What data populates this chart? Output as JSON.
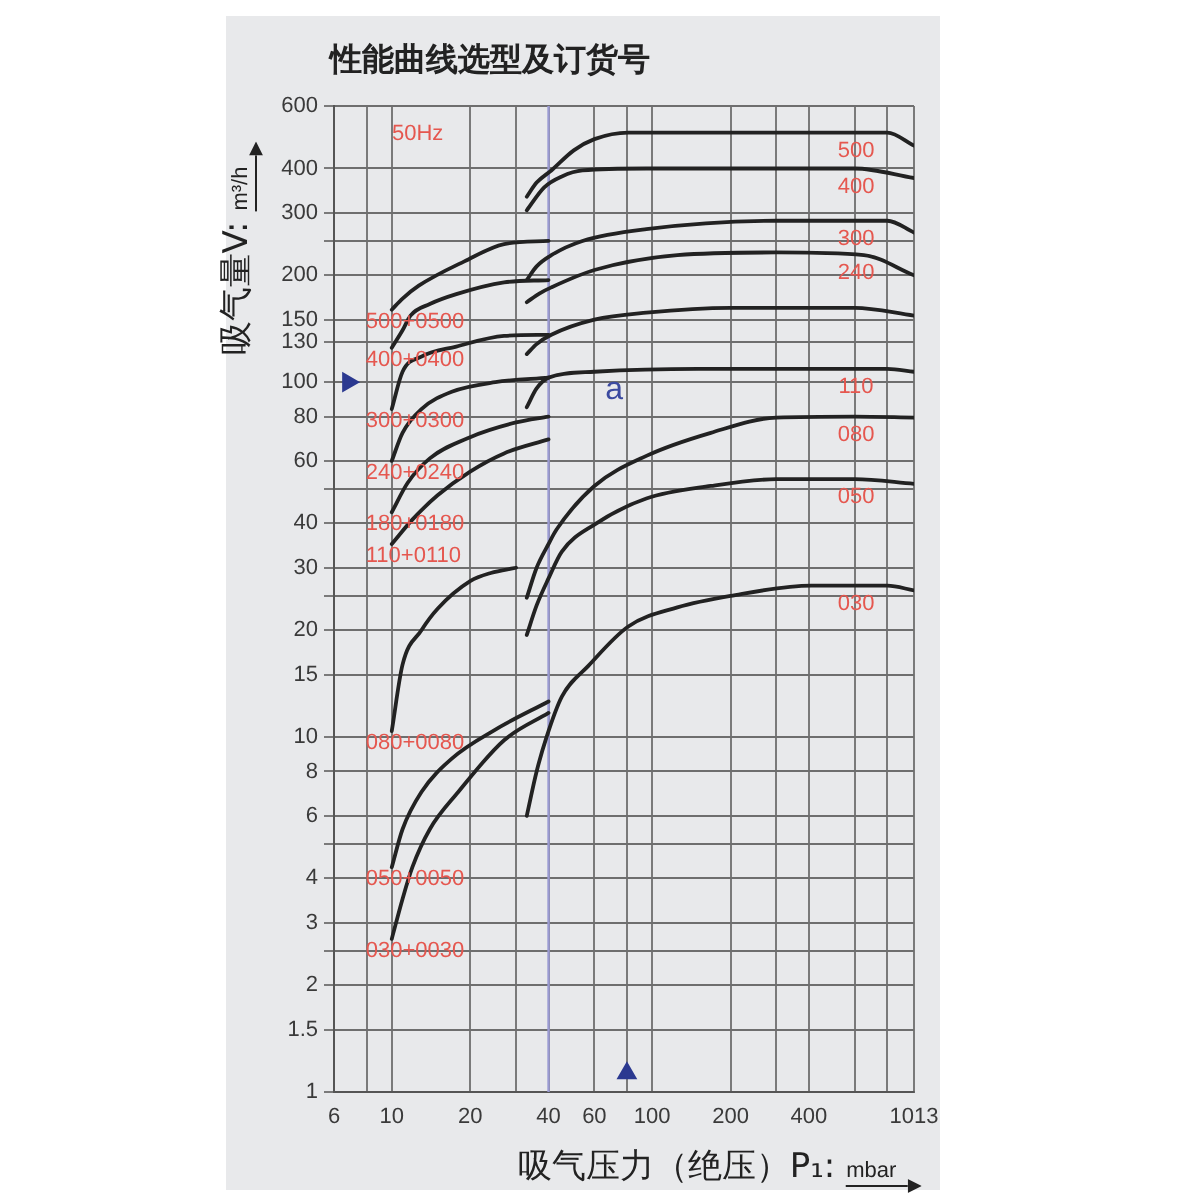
{
  "chart_data": {
    "type": "line",
    "title": "性能曲线选型及订货号",
    "xlabel": "吸气压力（绝压）P₁: mbar",
    "ylabel": "吸气量V: m³/h",
    "log": "xy",
    "grid": true,
    "legend": false,
    "marker": "none",
    "line_style": "solid",
    "xlim": [
      6,
      1013
    ],
    "ylim": [
      1,
      600
    ],
    "xticks": [
      6,
      {
        "value": 8,
        "label": null
      },
      10,
      20,
      {
        "value": 30,
        "label": null
      },
      40,
      60,
      {
        "value": 80,
        "label": null
      },
      100,
      200,
      {
        "value": 300,
        "label": null
      },
      400,
      {
        "value": 600,
        "label": null
      },
      {
        "value": 800,
        "label": null
      },
      1013
    ],
    "yticks": [
      1,
      1.5,
      2,
      {
        "value": 2.5,
        "label": null
      },
      3,
      4,
      {
        "value": 5,
        "label": null
      },
      6,
      8,
      10,
      15,
      20,
      {
        "value": 25,
        "label": null
      },
      30,
      40,
      {
        "value": 50,
        "label": null
      },
      60,
      80,
      100,
      130,
      150,
      200,
      {
        "value": 250,
        "label": null
      },
      300,
      400,
      600
    ],
    "annotations": [
      "50Hz",
      "a"
    ],
    "ref_lines": [
      {
        "axis": "x",
        "value": 40,
        "color": "#9a9ad2"
      }
    ],
    "series": [
      {
        "name": "500+0500",
        "color": "#222222",
        "x": [
          10,
          11,
          12.7,
          19,
          27,
          40
        ],
        "values": [
          160,
          172,
          187,
          219,
          245,
          250
        ]
      },
      {
        "name": "400+0400",
        "color": "#222222",
        "x": [
          10,
          11,
          11.8,
          14,
          17.7,
          27,
          40
        ],
        "values": [
          125,
          140,
          154,
          166,
          177,
          191,
          194
        ]
      },
      {
        "name": "300+0300",
        "color": "#222222",
        "x": [
          10,
          11,
          13,
          17.7,
          27,
          40
        ],
        "values": [
          84,
          107,
          118,
          126,
          135,
          136
        ]
      },
      {
        "name": "240+0240",
        "color": "#222222",
        "x": [
          10,
          11,
          13,
          17,
          25,
          40
        ],
        "values": [
          60,
          72,
          84,
          94,
          100,
          103
        ]
      },
      {
        "name": "180+0180",
        "color": "#222222",
        "x": [
          10,
          11.5,
          14,
          20,
          30,
          40
        ],
        "values": [
          43,
          52,
          61,
          70,
          77,
          80
        ]
      },
      {
        "name": "110+0110",
        "color": "#222222",
        "x": [
          10,
          12,
          15,
          20,
          27,
          40
        ],
        "values": [
          35,
          41,
          48,
          56,
          63,
          69
        ]
      },
      {
        "name": "080+0080",
        "color": "#222222",
        "x": [
          10,
          11,
          13,
          15,
          20,
          24,
          30
        ],
        "values": [
          10.4,
          16,
          20,
          23,
          27.5,
          29,
          30
        ]
      },
      {
        "name": "050+0050",
        "color": "#222222",
        "x": [
          10,
          11,
          13,
          17,
          25,
          40
        ],
        "values": [
          4.3,
          5.5,
          7,
          8.7,
          10.5,
          12.6
        ]
      },
      {
        "name": "030+0030",
        "color": "#222222",
        "x": [
          10,
          11,
          12,
          14,
          18,
          27,
          40
        ],
        "values": [
          2.7,
          3.5,
          4.3,
          5.5,
          7,
          9.8,
          11.7
        ]
      },
      {
        "name": "500",
        "color": "#222222",
        "x": [
          33,
          36,
          41,
          50,
          60,
          81,
          300,
          800,
          1013
        ],
        "values": [
          333,
          365,
          395,
          450,
          484,
          505,
          505,
          505,
          464
        ]
      },
      {
        "name": "400",
        "color": "#222222",
        "x": [
          33,
          38.5,
          45,
          54,
          95,
          600,
          1013
        ],
        "values": [
          305,
          354,
          380,
          395,
          400,
          400,
          376
        ]
      },
      {
        "name": "300",
        "color": "#222222",
        "x": [
          33,
          36,
          41,
          54,
          95,
          300,
          800,
          1013
        ],
        "values": [
          194,
          212,
          228,
          250,
          270,
          285,
          285,
          264
        ]
      },
      {
        "name": "240",
        "color": "#222222",
        "x": [
          33,
          37,
          41,
          60,
          125,
          300,
          650,
          1013
        ],
        "values": [
          168,
          178,
          185,
          207,
          228,
          232,
          228,
          200
        ]
      },
      {
        "color": "#222222",
        "x": [
          33,
          36,
          41,
          60,
          95,
          200,
          600,
          1013
        ],
        "values": [
          120,
          128,
          136,
          150,
          157,
          162,
          162,
          154
        ]
      },
      {
        "name": "110",
        "color": "#222222",
        "x": [
          33,
          36,
          40,
          60,
          150,
          300,
          800,
          1013
        ],
        "values": [
          85,
          96,
          103,
          107,
          109,
          109,
          109,
          107
        ]
      },
      {
        "name": "080",
        "color": "#222222",
        "x": [
          33,
          36,
          40,
          43,
          60,
          95,
          168,
          300,
          600,
          1013
        ],
        "values": [
          24.7,
          30,
          35,
          38.5,
          51,
          62,
          72,
          79.5,
          80,
          79.5
        ]
      },
      {
        "name": "050",
        "color": "#222222",
        "x": [
          33,
          36,
          40,
          45,
          60,
          95,
          168,
          300,
          600,
          1013
        ],
        "values": [
          19.4,
          23.5,
          28,
          33.3,
          39.7,
          47,
          51,
          53.3,
          53.3,
          51.7
        ]
      },
      {
        "name": "030",
        "color": "#222222",
        "x": [
          33,
          36,
          39.3,
          45,
          57,
          81,
          125,
          200,
          408,
          800,
          1013
        ],
        "values": [
          6,
          8,
          10,
          13,
          15.9,
          20.5,
          23.2,
          25,
          26.7,
          26.7,
          25.9
        ]
      },
      {
        "type": "scatter",
        "marker": "triangle",
        "color": "#2b3990",
        "x": [
          6.8,
          80
        ],
        "values": [
          100,
          1.13
        ]
      }
    ]
  }
}
